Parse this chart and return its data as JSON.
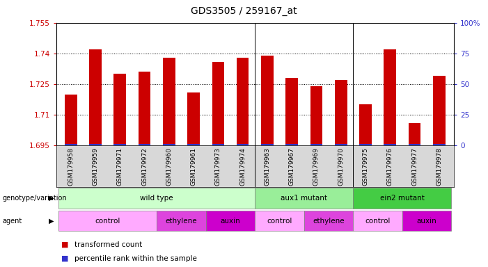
{
  "title": "GDS3505 / 259167_at",
  "samples": [
    "GSM179958",
    "GSM179959",
    "GSM179971",
    "GSM179972",
    "GSM179960",
    "GSM179961",
    "GSM179973",
    "GSM179974",
    "GSM179963",
    "GSM179967",
    "GSM179969",
    "GSM179970",
    "GSM179975",
    "GSM179976",
    "GSM179977",
    "GSM179978"
  ],
  "red_values": [
    1.72,
    1.742,
    1.73,
    1.731,
    1.738,
    1.721,
    1.736,
    1.738,
    1.739,
    1.728,
    1.724,
    1.727,
    1.715,
    1.742,
    1.706,
    1.729
  ],
  "y_min": 1.695,
  "y_max": 1.755,
  "y_ticks_left": [
    1.695,
    1.71,
    1.725,
    1.74,
    1.755
  ],
  "y_ticks_right": [
    0,
    25,
    50,
    75,
    100
  ],
  "bar_color_red": "#cc0000",
  "bar_color_blue": "#3333cc",
  "genotype_groups": [
    {
      "label": "wild type",
      "start": 0,
      "end": 7,
      "color": "#ccffcc"
    },
    {
      "label": "aux1 mutant",
      "start": 8,
      "end": 11,
      "color": "#99ee99"
    },
    {
      "label": "ein2 mutant",
      "start": 12,
      "end": 15,
      "color": "#44cc44"
    }
  ],
  "agent_groups": [
    {
      "label": "control",
      "start": 0,
      "end": 3,
      "color": "#ffaaff"
    },
    {
      "label": "ethylene",
      "start": 4,
      "end": 5,
      "color": "#dd44dd"
    },
    {
      "label": "auxin",
      "start": 6,
      "end": 7,
      "color": "#cc00cc"
    },
    {
      "label": "control",
      "start": 8,
      "end": 9,
      "color": "#ffaaff"
    },
    {
      "label": "ethylene",
      "start": 10,
      "end": 11,
      "color": "#dd44dd"
    },
    {
      "label": "control",
      "start": 12,
      "end": 13,
      "color": "#ffaaff"
    },
    {
      "label": "auxin",
      "start": 14,
      "end": 15,
      "color": "#cc00cc"
    }
  ],
  "legend_items": [
    {
      "label": "transformed count",
      "color": "#cc0000"
    },
    {
      "label": "percentile rank within the sample",
      "color": "#3333cc"
    }
  ],
  "left_label_color": "#cc0000",
  "right_label_color": "#3333cc",
  "tick_fontsize": 7.5,
  "title_fontsize": 10,
  "sample_fontsize": 6.5,
  "group_label_fontsize": 7.5
}
